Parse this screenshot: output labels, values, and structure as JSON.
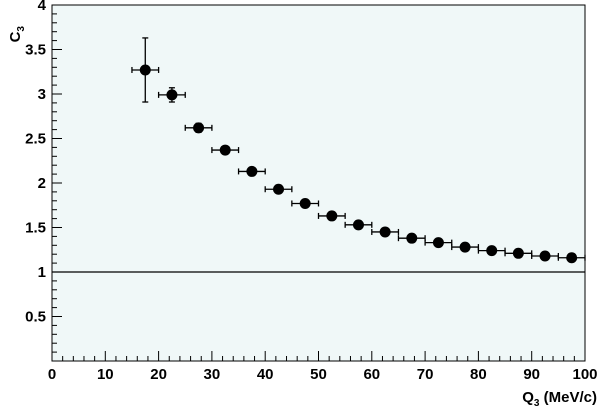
{
  "chart_data": {
    "type": "scatter",
    "xlabel": {
      "main": "Q",
      "sub": "3",
      "unit": " (MeV/c)"
    },
    "ylabel": {
      "main": "C",
      "sub": "3"
    },
    "xlim": [
      0,
      100
    ],
    "ylim": [
      0,
      4
    ],
    "x_ticks": [
      0,
      10,
      20,
      30,
      40,
      50,
      60,
      70,
      80,
      90,
      100
    ],
    "y_ticks": [
      0.5,
      1,
      1.5,
      2,
      2.5,
      3,
      3.5,
      4
    ],
    "y_tick_labels": [
      "0.5",
      "1",
      "1.5",
      "2",
      "2.5",
      "3",
      "3.5",
      "4"
    ],
    "reference_line": 1,
    "grid": false,
    "points": [
      {
        "x": 17.5,
        "y": 3.27,
        "xerr": 2.5,
        "yerr": 0.36
      },
      {
        "x": 22.5,
        "y": 2.99,
        "xerr": 2.5,
        "yerr": 0.08
      },
      {
        "x": 27.5,
        "y": 2.62,
        "xerr": 2.5,
        "yerr": 0.05
      },
      {
        "x": 32.5,
        "y": 2.37,
        "xerr": 2.5,
        "yerr": 0.03
      },
      {
        "x": 37.5,
        "y": 2.13,
        "xerr": 2.5,
        "yerr": 0.03
      },
      {
        "x": 42.5,
        "y": 1.93,
        "xerr": 2.5,
        "yerr": 0.02
      },
      {
        "x": 47.5,
        "y": 1.77,
        "xerr": 2.5,
        "yerr": 0.02
      },
      {
        "x": 52.5,
        "y": 1.63,
        "xerr": 2.5,
        "yerr": 0.02
      },
      {
        "x": 57.5,
        "y": 1.53,
        "xerr": 2.5,
        "yerr": 0.02
      },
      {
        "x": 62.5,
        "y": 1.45,
        "xerr": 2.5,
        "yerr": 0.01
      },
      {
        "x": 67.5,
        "y": 1.38,
        "xerr": 2.5,
        "yerr": 0.01
      },
      {
        "x": 72.5,
        "y": 1.33,
        "xerr": 2.5,
        "yerr": 0.01
      },
      {
        "x": 77.5,
        "y": 1.28,
        "xerr": 2.5,
        "yerr": 0.01
      },
      {
        "x": 82.5,
        "y": 1.24,
        "xerr": 2.5,
        "yerr": 0.01
      },
      {
        "x": 87.5,
        "y": 1.21,
        "xerr": 2.5,
        "yerr": 0.01
      },
      {
        "x": 92.5,
        "y": 1.18,
        "xerr": 2.5,
        "yerr": 0.01
      },
      {
        "x": 97.5,
        "y": 1.16,
        "xerr": 2.5,
        "yerr": 0.01
      }
    ],
    "colors": {
      "background": "#f0f8f8",
      "marker": "#000000",
      "axis": "#000000"
    }
  }
}
